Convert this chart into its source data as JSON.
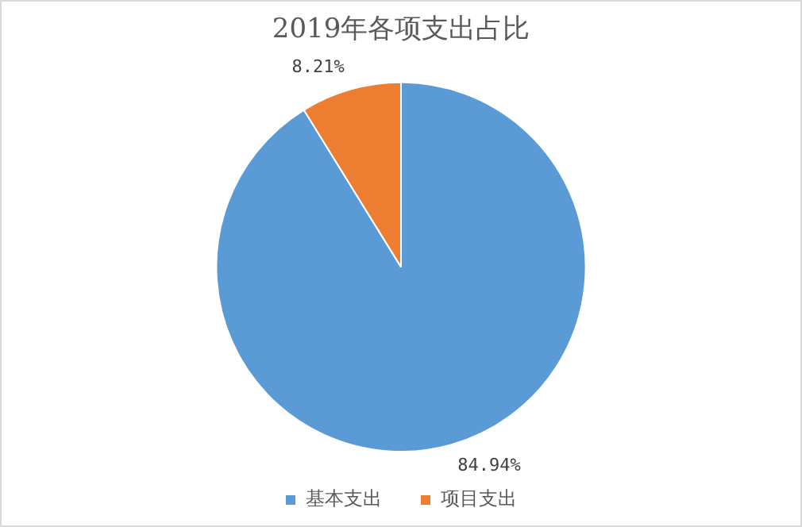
{
  "chart_data": {
    "type": "pie",
    "title": "2019年各项支出占比",
    "categories": [
      "基本支出",
      "项目支出"
    ],
    "values": [
      84.94,
      8.21
    ],
    "colors": [
      "#5b9bd5",
      "#ed7d31"
    ],
    "value_labels": [
      "84.94%",
      "8.21%"
    ],
    "legend": "bottom"
  }
}
